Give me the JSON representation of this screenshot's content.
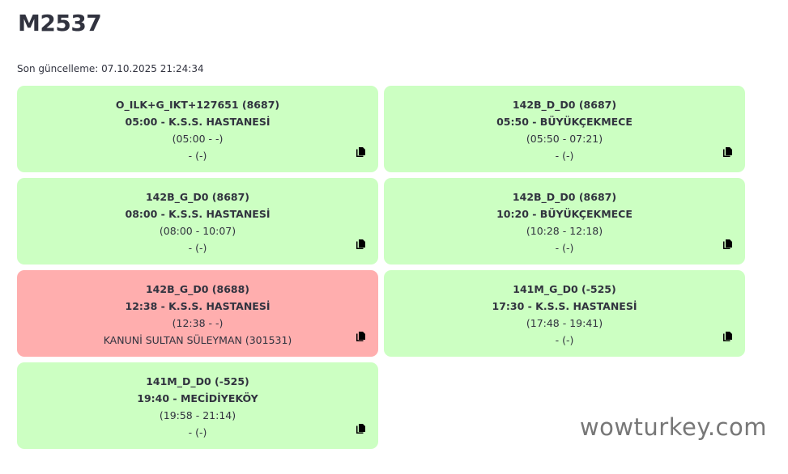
{
  "title": "M2537",
  "last_update": "Son güncelleme: 07.10.2025 21:24:34",
  "watermark": "wowturkey.com",
  "colors": {
    "ok": "#ccffc2",
    "alert": "#ffaeae"
  },
  "trips": [
    {
      "route": "O_ILK+G_IKT+127651 (8687)",
      "departure": "05:00 - K.S.S. HASTANESİ",
      "times": "(05:00 - -)",
      "location": "- (-)",
      "status": "ok",
      "icon": "copy-icon"
    },
    {
      "route": "142B_D_D0 (8687)",
      "departure": "05:50 - BÜYÜKÇEKMECE",
      "times": "(05:50 - 07:21)",
      "location": "- (-)",
      "status": "ok",
      "icon": "copy-icon"
    },
    {
      "route": "142B_G_D0 (8687)",
      "departure": "08:00 - K.S.S. HASTANESİ",
      "times": "(08:00 - 10:07)",
      "location": "- (-)",
      "status": "ok",
      "icon": "copy-icon"
    },
    {
      "route": "142B_D_D0 (8687)",
      "departure": "10:20 - BÜYÜKÇEKMECE",
      "times": "(10:28 - 12:18)",
      "location": "- (-)",
      "status": "ok",
      "icon": "copy-icon"
    },
    {
      "route": "142B_G_D0 (8688)",
      "departure": "12:38 - K.S.S. HASTANESİ",
      "times": "(12:38 - -)",
      "location": "KANUNİ SULTAN SÜLEYMAN (301531)",
      "status": "alert",
      "icon": "copy-icon"
    },
    {
      "route": "141M_G_D0 (-525)",
      "departure": "17:30 - K.S.S. HASTANESİ",
      "times": "(17:48 - 19:41)",
      "location": "- (-)",
      "status": "ok",
      "icon": "copy-icon"
    },
    {
      "route": "141M_D_D0 (-525)",
      "departure": "19:40 - MECİDİYEKÖY",
      "times": "(19:58 - 21:14)",
      "location": "- (-)",
      "status": "ok",
      "icon": "copy-icon"
    }
  ]
}
